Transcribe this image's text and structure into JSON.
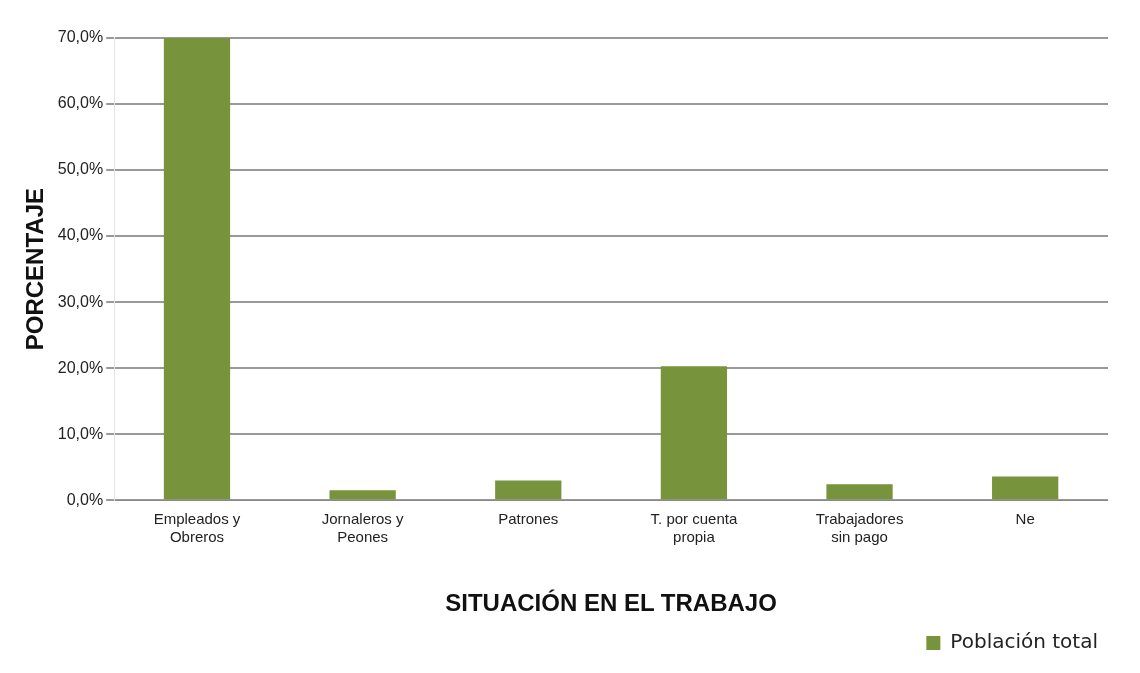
{
  "chart_data": {
    "type": "bar",
    "xlabel": "SITUACIÓN EN EL TRABAJO",
    "ylabel": "PORCENTAJE",
    "categories": [
      "Empleados y Obreros",
      "Jornaleros y Peones",
      "Patrones",
      "T. por cuenta propia",
      "Trabajadores sin pago",
      "Ne"
    ],
    "series": [
      {
        "name": "Población total",
        "color": "#77933c",
        "values": [
          70.0,
          1.5,
          3.0,
          20.3,
          2.4,
          3.6
        ]
      }
    ],
    "ylim": [
      0,
      70
    ],
    "yticks": [
      {
        "value": 0,
        "label": "0,0%"
      },
      {
        "value": 10,
        "label": "10,0%"
      },
      {
        "value": 20,
        "label": "20,0%"
      },
      {
        "value": 30,
        "label": "30,0%"
      },
      {
        "value": 40,
        "label": "40,0%"
      },
      {
        "value": 50,
        "label": "50,0%"
      },
      {
        "value": 60,
        "label": "60,0%"
      },
      {
        "value": 70,
        "label": "70,0%"
      }
    ],
    "grid": "y",
    "legend": "bottom right"
  }
}
